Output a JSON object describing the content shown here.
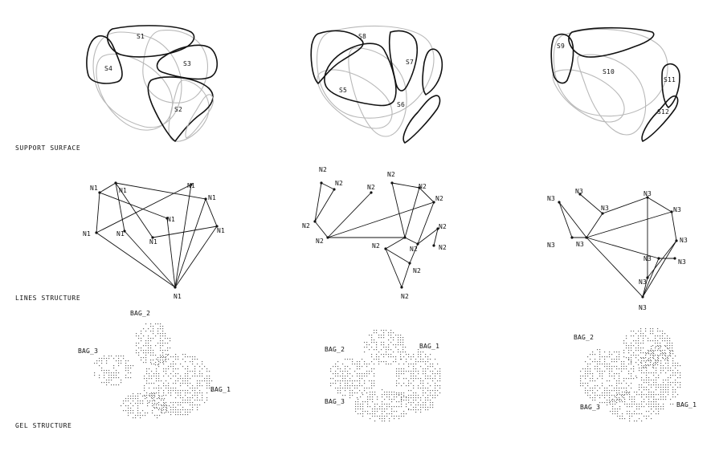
{
  "sections": {
    "support": "SUPPORT SURFACE",
    "lines": "LINES STRUCTURE",
    "gel": "GEL STRUCTURE"
  },
  "surface_labels": [
    "S1",
    "S2",
    "S3",
    "S4",
    "S5",
    "S6",
    "S7",
    "S8",
    "S9",
    "S10",
    "S11",
    "S12"
  ],
  "node_labels": {
    "col1": "N1",
    "col2": "N2",
    "col3": "N3"
  },
  "bag_labels": {
    "bag1": "BAG_1",
    "bag2": "BAG_2",
    "bag3": "BAG_3"
  },
  "colors": {
    "ink": "#111111",
    "ghost": "#b8b8b8",
    "dots": "#6a6a6a"
  }
}
